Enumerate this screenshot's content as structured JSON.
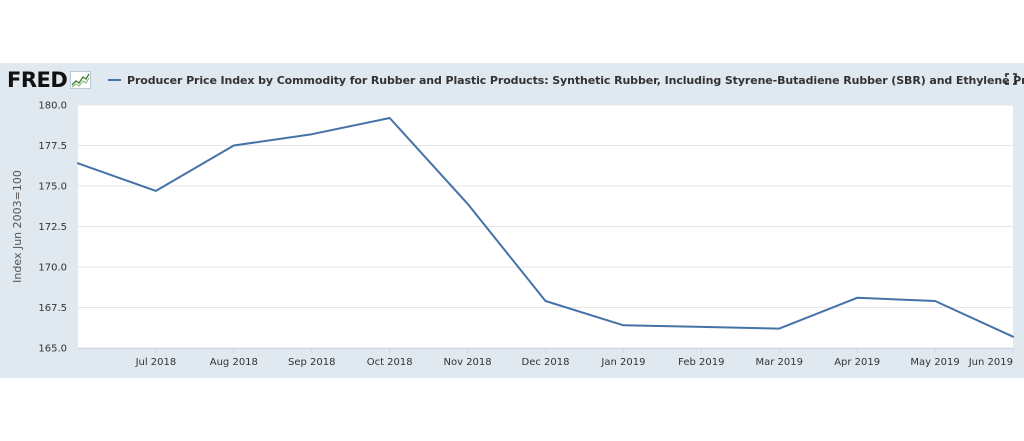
{
  "header": {
    "logo_text": "FRED",
    "series_title": "Producer Price Index by Commodity for Rubber and Plastic Products: Synthetic Rubber, Including Styrene-Butadiene Rubber (SBR) and Ethylene Propylene",
    "fullscreen_icon": "fullscreen-expand-icon"
  },
  "colors": {
    "series_line": "#4572a7",
    "panel_background": "#e1e9f0",
    "plot_background": "#ffffff",
    "gridline": "#e6e6e6"
  },
  "chart_data": {
    "type": "line",
    "title": "Producer Price Index by Commodity for Rubber and Plastic Products: Synthetic Rubber, Including Styrene-Butadiene Rubber (SBR) and Ethylene Propylene",
    "ylabel": "Index Jun 2003=100",
    "xlabel": "",
    "ylim": [
      165.0,
      180.0
    ],
    "yticks": [
      "165.0",
      "167.5",
      "170.0",
      "172.5",
      "175.0",
      "177.5",
      "180.0"
    ],
    "xlim": [
      "2018-06",
      "2019-06"
    ],
    "categories": [
      "Jul 2018",
      "Aug 2018",
      "Sep 2018",
      "Oct 2018",
      "Nov 2018",
      "Dec 2018",
      "Jan 2019",
      "Feb 2019",
      "Mar 2019",
      "Apr 2019",
      "May 2019",
      "Jun 2019"
    ],
    "x": [
      "2018-06",
      "2018-07",
      "2018-08",
      "2018-09",
      "2018-10",
      "2018-11",
      "2018-12",
      "2019-01",
      "2019-02",
      "2019-03",
      "2019-04",
      "2019-05",
      "2019-06"
    ],
    "series": [
      {
        "values": [
          176.4,
          174.7,
          177.5,
          178.2,
          179.2,
          173.9,
          167.9,
          166.4,
          166.3,
          166.2,
          168.1,
          167.9,
          165.7
        ]
      }
    ],
    "grid": "horizontal",
    "legend": "top-left"
  }
}
